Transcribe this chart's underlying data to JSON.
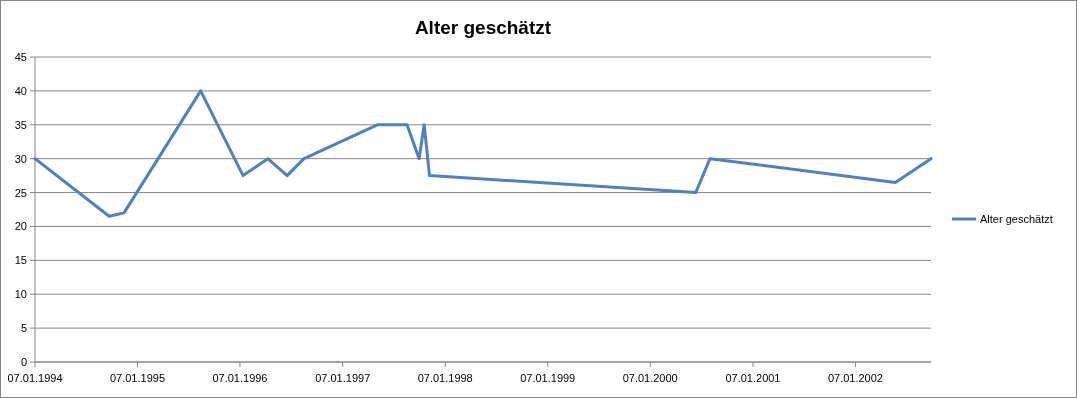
{
  "chart_data": {
    "type": "line",
    "title": "Alter geschätzt",
    "x": [
      "1994-01-07",
      "1994-09-28",
      "1994-11-20",
      "1995-08-20",
      "1996-01-18",
      "1996-04-15",
      "1996-06-23",
      "1996-08-22",
      "1997-05-10",
      "1997-08-24",
      "1997-10-06",
      "1997-10-24",
      "1997-11-12",
      "2000-06-17",
      "2000-08-07",
      "2002-05-29",
      "2002-10-03"
    ],
    "series": [
      {
        "name": "Alter geschätzt",
        "color": "#4f81bd",
        "values": [
          30,
          21.5,
          22,
          40,
          27.5,
          30,
          27.5,
          30,
          35,
          35,
          30,
          35,
          27.5,
          25,
          30,
          26.5,
          30
        ]
      }
    ],
    "xlim": [
      "1994-01-07",
      "2002-10-03"
    ],
    "xticks": [
      {
        "value": "1994-01-07",
        "label": "07.01.1994"
      },
      {
        "value": "1995-01-07",
        "label": "07.01.1995"
      },
      {
        "value": "1996-01-07",
        "label": "07.01.1996"
      },
      {
        "value": "1997-01-07",
        "label": "07.01.1997"
      },
      {
        "value": "1998-01-07",
        "label": "07.01.1998"
      },
      {
        "value": "1999-01-07",
        "label": "07.01.1999"
      },
      {
        "value": "2000-01-07",
        "label": "07.01.2000"
      },
      {
        "value": "2001-01-07",
        "label": "07.01.2001"
      },
      {
        "value": "2002-01-07",
        "label": "07.01.2002"
      }
    ],
    "ylim": [
      0,
      45
    ],
    "yticks": [
      0,
      5,
      10,
      15,
      20,
      25,
      30,
      35,
      40,
      45
    ],
    "grid": "y",
    "legend": "right",
    "marker": "none",
    "line_style": "solid"
  }
}
